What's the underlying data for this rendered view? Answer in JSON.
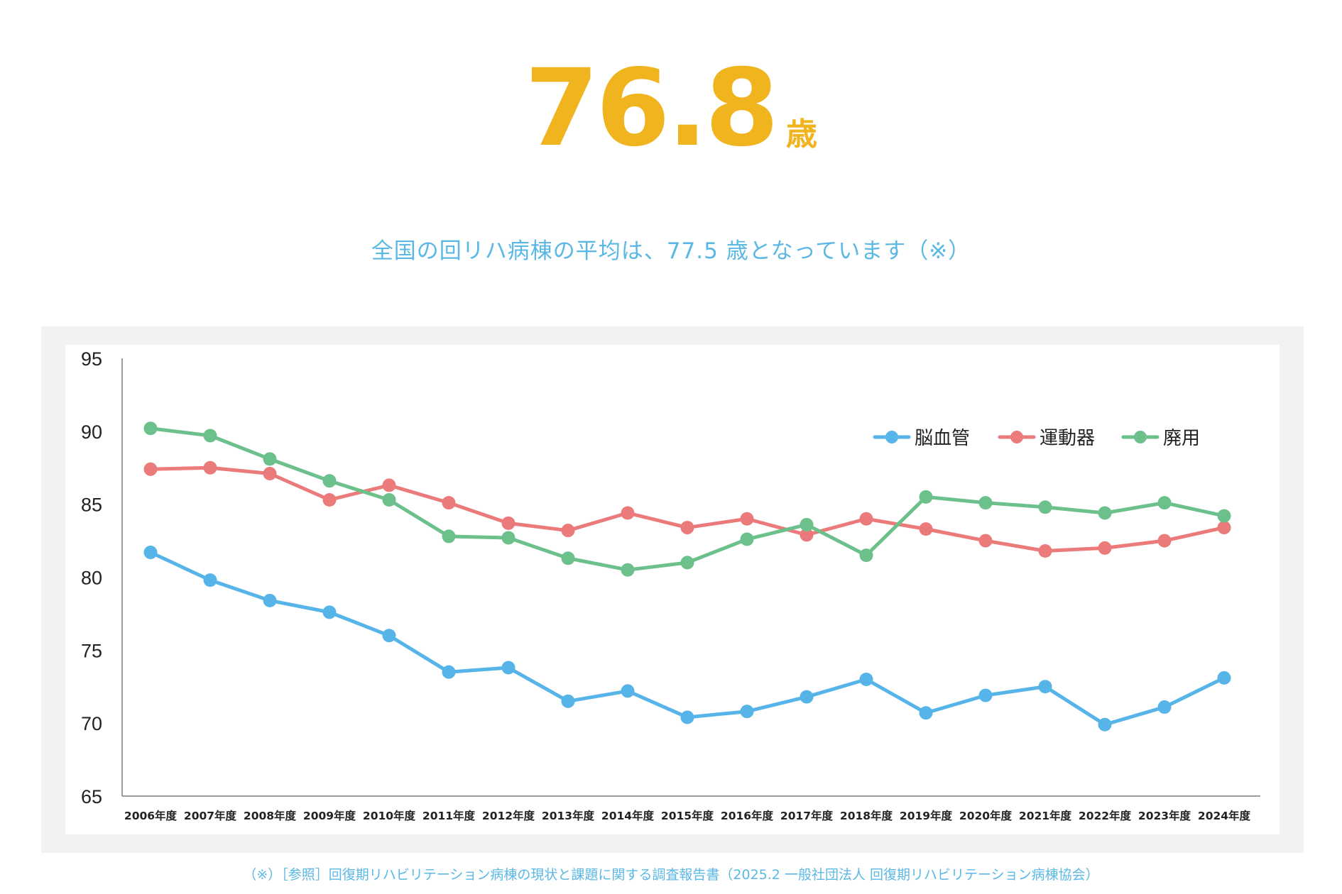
{
  "headline": {
    "value": "76.8",
    "unit": "歳",
    "color": "#f0b41f"
  },
  "subtitle": {
    "text": "全国の回リハ病棟の平均は、77.5 歳となっています（※）",
    "color": "#5bb8e4"
  },
  "footnote": {
    "text": "（※）［参照］回復期リハビリテーション病棟の現状と課題に関する調査報告書（2025.2 一般社団法人 回復期リハビリテーション病棟協会）",
    "color": "#5bb8e4"
  },
  "chart_data": {
    "type": "line",
    "title": "",
    "xlabel": "",
    "ylabel": "",
    "ylim": [
      65,
      95
    ],
    "yticks": [
      65,
      70,
      75,
      80,
      85,
      90,
      95
    ],
    "grid": false,
    "legend_position": "top-right",
    "categories": [
      "2006年度",
      "2007年度",
      "2008年度",
      "2009年度",
      "2010年度",
      "2011年度",
      "2012年度",
      "2013年度",
      "2014年度",
      "2015年度",
      "2016年度",
      "2017年度",
      "2018年度",
      "2019年度",
      "2020年度",
      "2021年度",
      "2022年度",
      "2023年度",
      "2024年度"
    ],
    "series": [
      {
        "name": "脳血管",
        "color": "#56b4e9",
        "values": [
          81.7,
          79.8,
          78.4,
          77.6,
          76.0,
          73.5,
          73.8,
          71.5,
          72.2,
          70.4,
          70.8,
          71.8,
          73.0,
          70.7,
          71.9,
          72.5,
          69.9,
          71.1,
          73.1
        ]
      },
      {
        "name": "運動器",
        "color": "#eb7a7a",
        "values": [
          87.4,
          87.5,
          87.1,
          85.3,
          86.3,
          85.1,
          83.7,
          83.2,
          84.4,
          83.4,
          84.0,
          82.9,
          84.0,
          83.3,
          82.5,
          81.8,
          82.0,
          82.5,
          83.4
        ]
      },
      {
        "name": "廃用",
        "color": "#6cc08b",
        "values": [
          90.2,
          89.7,
          88.1,
          86.6,
          85.3,
          82.8,
          82.7,
          81.3,
          80.5,
          81.0,
          82.6,
          83.6,
          81.5,
          85.5,
          85.1,
          84.8,
          84.4,
          85.1,
          84.2
        ]
      }
    ]
  }
}
